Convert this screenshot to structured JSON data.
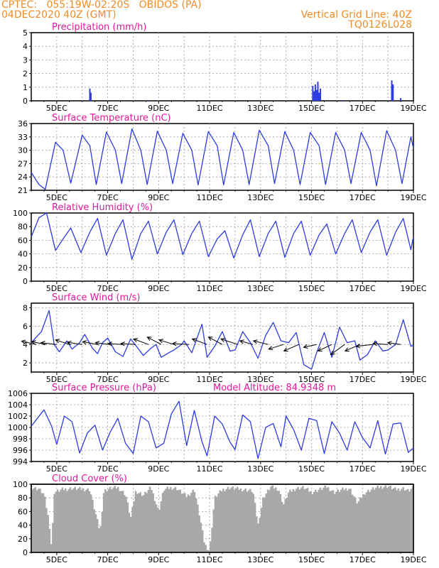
{
  "header": {
    "line1": "CPTEC:   055:19W-02:20S   OBIDOS (PA)",
    "line2": "04DEC2020 40Z (GMT)",
    "grid_note": "Vertical Grid Line: 40Z",
    "code": "TQ0126L028"
  },
  "colors": {
    "header": "#f08c28",
    "title": "#e0189a",
    "series": "#2d3be0",
    "cloud": "#a8a8a8",
    "arrow": "#000000"
  },
  "x_ticks": [
    "5DEC",
    "7DEC",
    "9DEC",
    "11DEC",
    "13DEC",
    "15DEC",
    "17DEC",
    "19DEC"
  ],
  "chart_data": [
    {
      "id": "precip",
      "type": "bar",
      "title": "Precipitation (mm/h)",
      "ylim": [
        0,
        5
      ],
      "yticks": [
        "0",
        "1",
        "2",
        "3",
        "4",
        "5"
      ],
      "x_unit": "day of December 2020 (decimal)",
      "points": [
        [
          6.3,
          0.9
        ],
        [
          6.34,
          0.6
        ],
        [
          15.05,
          1.1
        ],
        [
          15.1,
          0.7
        ],
        [
          15.15,
          1.2
        ],
        [
          15.2,
          0.8
        ],
        [
          15.25,
          1.4
        ],
        [
          15.3,
          0.6
        ],
        [
          15.35,
          0.9
        ],
        [
          18.15,
          1.5
        ],
        [
          18.2,
          1.2
        ],
        [
          18.5,
          0.2
        ],
        [
          8.6,
          0.05
        ],
        [
          16.2,
          0.05
        ]
      ]
    },
    {
      "id": "temp",
      "type": "line",
      "title": "Surface Temperature (nC)",
      "ylim": [
        21,
        36
      ],
      "yticks": [
        "21",
        "24",
        "27",
        "30",
        "33",
        "36"
      ],
      "x_unit": "day of December 2020 (decimal)",
      "points": [
        [
          4.0,
          25.0
        ],
        [
          4.3,
          22.3
        ],
        [
          4.55,
          21.2
        ],
        [
          4.95,
          31.8
        ],
        [
          5.25,
          30.0
        ],
        [
          5.55,
          22.6
        ],
        [
          6.0,
          33.4
        ],
        [
          6.3,
          31.0
        ],
        [
          6.55,
          22.3
        ],
        [
          6.95,
          34.1
        ],
        [
          7.3,
          30.0
        ],
        [
          7.55,
          22.5
        ],
        [
          7.95,
          34.8
        ],
        [
          8.3,
          30.0
        ],
        [
          8.55,
          22.3
        ],
        [
          8.95,
          34.3
        ],
        [
          9.3,
          30.0
        ],
        [
          9.55,
          22.5
        ],
        [
          9.95,
          33.8
        ],
        [
          10.3,
          30.0
        ],
        [
          10.55,
          22.2
        ],
        [
          10.95,
          34.2
        ],
        [
          11.3,
          31.0
        ],
        [
          11.55,
          22.2
        ],
        [
          11.95,
          34.0
        ],
        [
          12.3,
          30.0
        ],
        [
          12.55,
          22.3
        ],
        [
          12.95,
          34.5
        ],
        [
          13.3,
          31.0
        ],
        [
          13.55,
          22.5
        ],
        [
          13.95,
          34.2
        ],
        [
          14.3,
          30.0
        ],
        [
          14.55,
          22.3
        ],
        [
          14.95,
          34.0
        ],
        [
          15.3,
          31.0
        ],
        [
          15.55,
          22.3
        ],
        [
          15.95,
          34.0
        ],
        [
          16.3,
          30.0
        ],
        [
          16.55,
          22.5
        ],
        [
          16.95,
          34.0
        ],
        [
          17.3,
          30.0
        ],
        [
          17.55,
          22.0
        ],
        [
          17.95,
          34.4
        ],
        [
          18.3,
          30.0
        ],
        [
          18.55,
          22.5
        ],
        [
          18.9,
          33.0
        ],
        [
          19.0,
          30.5
        ]
      ]
    },
    {
      "id": "rh",
      "type": "line",
      "title": "Relative Humidity (%)",
      "ylim": [
        0,
        100
      ],
      "yticks": [
        "0",
        "20",
        "40",
        "60",
        "80",
        "100"
      ],
      "x_unit": "day of December 2020 (decimal)",
      "points": [
        [
          4.0,
          65.0
        ],
        [
          4.3,
          93.0
        ],
        [
          4.6,
          100.0
        ],
        [
          4.95,
          45.0
        ],
        [
          5.25,
          62.0
        ],
        [
          5.55,
          78.0
        ],
        [
          5.95,
          42.0
        ],
        [
          6.3,
          72.0
        ],
        [
          6.6,
          92.0
        ],
        [
          6.95,
          38.0
        ],
        [
          7.3,
          70.0
        ],
        [
          7.6,
          90.0
        ],
        [
          7.95,
          32.0
        ],
        [
          8.3,
          70.0
        ],
        [
          8.6,
          88.0
        ],
        [
          8.95,
          40.0
        ],
        [
          9.3,
          72.0
        ],
        [
          9.6,
          90.0
        ],
        [
          9.95,
          39.0
        ],
        [
          10.3,
          70.0
        ],
        [
          10.6,
          88.0
        ],
        [
          10.95,
          36.0
        ],
        [
          11.3,
          62.0
        ],
        [
          11.6,
          74.0
        ],
        [
          11.95,
          34.0
        ],
        [
          12.3,
          68.0
        ],
        [
          12.6,
          90.0
        ],
        [
          12.95,
          36.0
        ],
        [
          13.3,
          70.0
        ],
        [
          13.6,
          88.0
        ],
        [
          13.95,
          35.0
        ],
        [
          14.3,
          70.0
        ],
        [
          14.6,
          88.0
        ],
        [
          14.95,
          38.0
        ],
        [
          15.3,
          68.0
        ],
        [
          15.6,
          84.0
        ],
        [
          15.95,
          40.0
        ],
        [
          16.3,
          70.0
        ],
        [
          16.6,
          90.0
        ],
        [
          16.95,
          42.0
        ],
        [
          17.3,
          72.0
        ],
        [
          17.6,
          90.0
        ],
        [
          17.95,
          38.0
        ],
        [
          18.3,
          72.0
        ],
        [
          18.6,
          92.0
        ],
        [
          18.9,
          46.0
        ],
        [
          19.0,
          65.0
        ]
      ]
    },
    {
      "id": "wind",
      "type": "line",
      "title": "Surface Wind (m/s)",
      "ylim": [
        1,
        8.5
      ],
      "yticks": [
        "2",
        "4",
        "6",
        "8"
      ],
      "x_unit": "day of December 2020 (decimal)",
      "points": [
        [
          4.0,
          4.2
        ],
        [
          4.4,
          5.4
        ],
        [
          4.7,
          7.7
        ],
        [
          4.9,
          4.0
        ],
        [
          5.1,
          3.2
        ],
        [
          5.4,
          4.4
        ],
        [
          5.6,
          3.5
        ],
        [
          5.9,
          4.2
        ],
        [
          6.1,
          5.1
        ],
        [
          6.4,
          3.6
        ],
        [
          6.6,
          3.0
        ],
        [
          6.8,
          4.2
        ],
        [
          7.0,
          4.7
        ],
        [
          7.3,
          3.2
        ],
        [
          7.6,
          2.7
        ],
        [
          7.9,
          4.6
        ],
        [
          8.1,
          3.9
        ],
        [
          8.4,
          2.8
        ],
        [
          8.7,
          3.6
        ],
        [
          8.9,
          4.0
        ],
        [
          9.1,
          2.6
        ],
        [
          9.4,
          3.1
        ],
        [
          9.6,
          3.4
        ],
        [
          9.9,
          4.0
        ],
        [
          10.0,
          4.4
        ],
        [
          10.3,
          3.1
        ],
        [
          10.7,
          6.2
        ],
        [
          10.9,
          2.6
        ],
        [
          11.2,
          3.8
        ],
        [
          11.5,
          5.4
        ],
        [
          11.8,
          3.3
        ],
        [
          12.0,
          3.4
        ],
        [
          12.3,
          5.4
        ],
        [
          12.6,
          4.2
        ],
        [
          12.9,
          2.5
        ],
        [
          13.2,
          5.0
        ],
        [
          13.5,
          6.4
        ],
        [
          13.8,
          4.4
        ],
        [
          14.1,
          4.2
        ],
        [
          14.4,
          5.3
        ],
        [
          14.7,
          1.8
        ],
        [
          15.0,
          1.3
        ],
        [
          15.2,
          3.1
        ],
        [
          15.5,
          5.3
        ],
        [
          15.8,
          2.6
        ],
        [
          16.1,
          5.9
        ],
        [
          16.4,
          4.2
        ],
        [
          16.7,
          4.4
        ],
        [
          16.9,
          2.3
        ],
        [
          17.2,
          2.9
        ],
        [
          17.5,
          4.4
        ],
        [
          17.8,
          3.3
        ],
        [
          18.0,
          3.4
        ],
        [
          18.3,
          4.0
        ],
        [
          18.6,
          6.7
        ],
        [
          18.9,
          3.8
        ],
        [
          19.0,
          3.9
        ]
      ],
      "vectors": [
        [
          4.2,
          0.8,
          0.18
        ],
        [
          4.6,
          0.8,
          0.15
        ],
        [
          5.0,
          0.85,
          0.1
        ],
        [
          5.5,
          0.75,
          0.25
        ],
        [
          6.0,
          0.8,
          0.12
        ],
        [
          6.6,
          0.8,
          0.15
        ],
        [
          7.1,
          0.8,
          0.1
        ],
        [
          7.6,
          0.8,
          0.05
        ],
        [
          8.1,
          0.8,
          0.05
        ],
        [
          8.6,
          0.8,
          0.3
        ],
        [
          9.1,
          0.75,
          0.4
        ],
        [
          9.6,
          0.8,
          0.25
        ],
        [
          10.2,
          0.9,
          0.05
        ],
        [
          10.9,
          0.8,
          0.3
        ],
        [
          11.5,
          0.75,
          0.4
        ],
        [
          12.1,
          0.9,
          0.3
        ],
        [
          12.7,
          0.7,
          0.2
        ],
        [
          13.3,
          0.8,
          0.2
        ],
        [
          13.9,
          0.8,
          -0.25
        ],
        [
          14.5,
          0.8,
          -0.35
        ],
        [
          15.2,
          0.7,
          -0.15
        ],
        [
          15.8,
          0.75,
          -0.35
        ],
        [
          16.3,
          0.75,
          -0.55
        ],
        [
          16.9,
          0.8,
          -0.35
        ],
        [
          17.4,
          0.9,
          -0.1
        ],
        [
          18.0,
          0.8,
          0.05
        ],
        [
          18.5,
          0.7,
          0.1
        ]
      ]
    },
    {
      "id": "pressure",
      "type": "line",
      "title": "Surface Pressure (hPa)",
      "annotation": "Model Altitude: 84.9348 m",
      "ylim": [
        994,
        1006
      ],
      "yticks": [
        "994",
        "996",
        "998",
        "1000",
        "1002",
        "1004",
        "1006"
      ],
      "x_unit": "day of December 2020 (decimal)",
      "points": [
        [
          4.0,
          1000.2
        ],
        [
          4.5,
          1003.1
        ],
        [
          4.8,
          1000.2
        ],
        [
          5.0,
          997.0
        ],
        [
          5.3,
          1002.0
        ],
        [
          5.6,
          1001.0
        ],
        [
          5.9,
          995.5
        ],
        [
          6.2,
          999.0
        ],
        [
          6.5,
          1000.4
        ],
        [
          6.8,
          996.0
        ],
        [
          7.1,
          999.2
        ],
        [
          7.4,
          1001.6
        ],
        [
          7.7,
          997.2
        ],
        [
          8.0,
          995.4
        ],
        [
          8.3,
          1002.0
        ],
        [
          8.6,
          1001.0
        ],
        [
          8.9,
          996.4
        ],
        [
          9.2,
          997.2
        ],
        [
          9.5,
          1002.4
        ],
        [
          9.8,
          1004.6
        ],
        [
          10.1,
          996.8
        ],
        [
          10.4,
          1003.0
        ],
        [
          10.7,
          997.5
        ],
        [
          10.9,
          995.0
        ],
        [
          11.2,
          1002.0
        ],
        [
          11.5,
          1000.6
        ],
        [
          11.8,
          997.4
        ],
        [
          12.0,
          996.1
        ],
        [
          12.3,
          1002.2
        ],
        [
          12.6,
          1001.0
        ],
        [
          12.9,
          994.5
        ],
        [
          13.2,
          1000.0
        ],
        [
          13.5,
          1000.7
        ],
        [
          13.8,
          996.6
        ],
        [
          14.0,
          1002.0
        ],
        [
          14.3,
          999.6
        ],
        [
          14.6,
          996.0
        ],
        [
          14.9,
          1001.6
        ],
        [
          15.2,
          1001.2
        ],
        [
          15.5,
          995.4
        ],
        [
          15.8,
          1001.0
        ],
        [
          16.1,
          999.0
        ],
        [
          16.4,
          996.0
        ],
        [
          16.7,
          1001.0
        ],
        [
          17.0,
          998.2
        ],
        [
          17.3,
          996.4
        ],
        [
          17.6,
          1001.2
        ],
        [
          17.9,
          995.3
        ],
        [
          18.2,
          1000.6
        ],
        [
          18.5,
          1000.8
        ],
        [
          18.8,
          995.6
        ],
        [
          19.0,
          996.4
        ]
      ]
    },
    {
      "id": "cloud",
      "type": "bar",
      "title": "Cloud Cover (%)",
      "ylim": [
        0,
        100
      ],
      "yticks": [
        "0",
        "20",
        "40",
        "60",
        "80",
        "100"
      ],
      "x_unit": "day of December 2020 (decimal)",
      "points": [
        [
          4.0,
          95.0
        ],
        [
          4.3,
          93.0
        ],
        [
          4.5,
          85.0
        ],
        [
          4.7,
          45.0
        ],
        [
          4.8,
          5.0
        ],
        [
          4.9,
          88.0
        ],
        [
          5.2,
          92.0
        ],
        [
          5.6,
          94.0
        ],
        [
          5.9,
          93.0
        ],
        [
          6.3,
          92.0
        ],
        [
          6.5,
          60.0
        ],
        [
          6.7,
          30.0
        ],
        [
          6.85,
          90.0
        ],
        [
          7.1,
          94.0
        ],
        [
          7.4,
          95.0
        ],
        [
          7.7,
          85.0
        ],
        [
          7.9,
          50.0
        ],
        [
          8.1,
          90.0
        ],
        [
          8.4,
          84.0
        ],
        [
          8.7,
          95.0
        ],
        [
          9.0,
          60.0
        ],
        [
          9.2,
          92.0
        ],
        [
          9.5,
          95.0
        ],
        [
          9.7,
          94.0
        ],
        [
          9.9,
          88.0
        ],
        [
          10.1,
          82.0
        ],
        [
          10.4,
          92.0
        ],
        [
          10.6,
          55.0
        ],
        [
          10.8,
          12.0
        ],
        [
          11.0,
          2.0
        ],
        [
          11.2,
          80.0
        ],
        [
          11.5,
          92.0
        ],
        [
          11.8,
          95.0
        ],
        [
          12.1,
          93.0
        ],
        [
          12.4,
          92.0
        ],
        [
          12.7,
          90.0
        ],
        [
          12.9,
          40.0
        ],
        [
          13.1,
          80.0
        ],
        [
          13.4,
          96.0
        ],
        [
          13.7,
          93.0
        ],
        [
          13.9,
          70.0
        ],
        [
          14.1,
          88.0
        ],
        [
          14.4,
          94.0
        ],
        [
          14.7,
          95.0
        ],
        [
          15.0,
          88.0
        ],
        [
          15.3,
          92.0
        ],
        [
          15.6,
          96.0
        ],
        [
          15.9,
          88.0
        ],
        [
          16.2,
          92.0
        ],
        [
          16.5,
          94.0
        ],
        [
          16.8,
          72.0
        ],
        [
          17.1,
          88.0
        ],
        [
          17.4,
          93.0
        ],
        [
          17.7,
          96.0
        ],
        [
          18.0,
          97.0
        ],
        [
          18.3,
          92.0
        ],
        [
          18.6,
          94.0
        ],
        [
          18.8,
          90.0
        ],
        [
          19.0,
          95.0
        ]
      ]
    }
  ]
}
